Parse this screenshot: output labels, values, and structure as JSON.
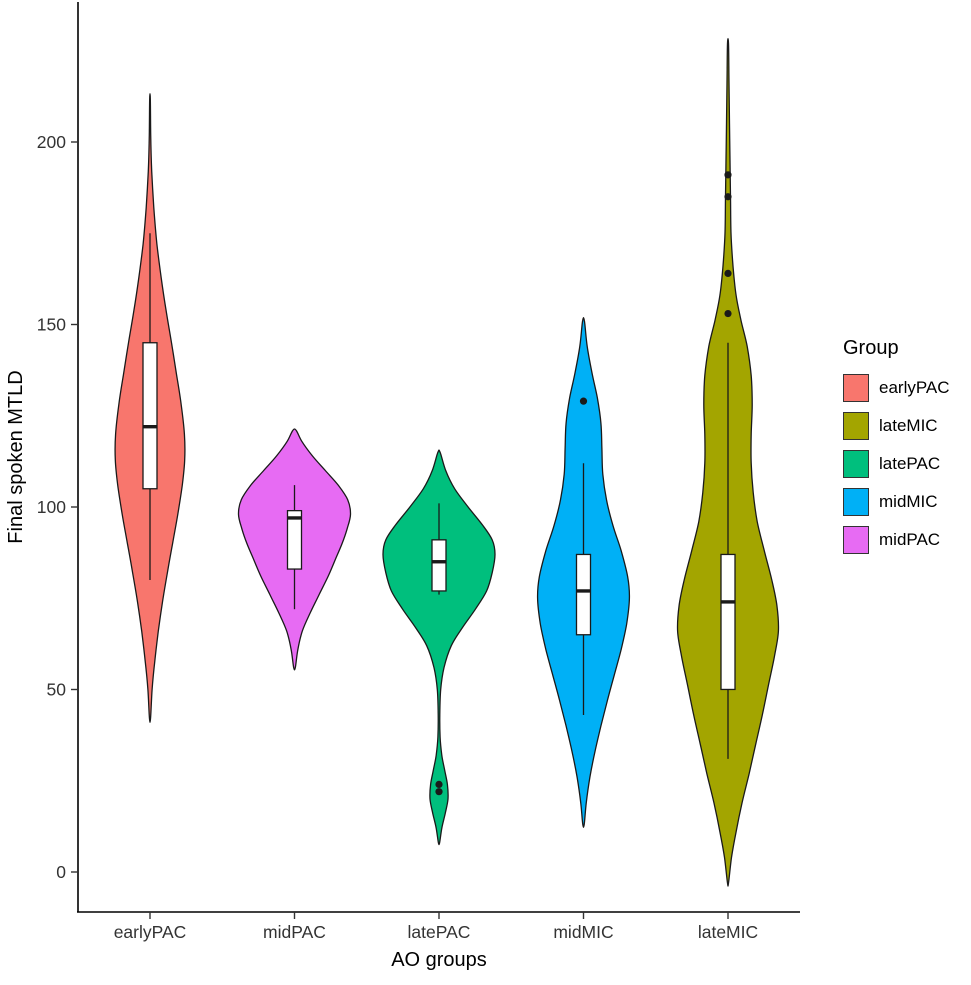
{
  "chart_data": {
    "type": "violin",
    "title": "",
    "xlabel": "AO groups",
    "ylabel": "Final spoken MTLD",
    "ylim": [
      -11,
      237
    ],
    "yticks": [
      0,
      50,
      100,
      150,
      200
    ],
    "categories": [
      "earlyPAC",
      "midPAC",
      "latePAC",
      "midMIC",
      "lateMIC"
    ],
    "grid": false,
    "legend_position": "right",
    "series": [
      {
        "name": "earlyPAC",
        "color": "#F8766D",
        "width_scale": 0.62,
        "box": {
          "q1": 105,
          "median": 122,
          "q3": 145,
          "whisker_low": 80,
          "whisker_high": 175
        },
        "outliers": [],
        "density": [
          [
            42,
            0.015
          ],
          [
            50,
            0.06
          ],
          [
            58,
            0.14
          ],
          [
            66,
            0.24
          ],
          [
            74,
            0.36
          ],
          [
            82,
            0.5
          ],
          [
            90,
            0.65
          ],
          [
            98,
            0.8
          ],
          [
            106,
            0.93
          ],
          [
            113,
            1.0
          ],
          [
            120,
            0.99
          ],
          [
            128,
            0.9
          ],
          [
            136,
            0.77
          ],
          [
            145,
            0.62
          ],
          [
            154,
            0.46
          ],
          [
            163,
            0.32
          ],
          [
            172,
            0.2
          ],
          [
            182,
            0.11
          ],
          [
            192,
            0.05
          ],
          [
            202,
            0.02
          ],
          [
            212,
            0.01
          ]
        ]
      },
      {
        "name": "midPAC",
        "color": "#E76BF3",
        "width_scale": 1.0,
        "box": {
          "q1": 83,
          "median": 97,
          "q3": 99,
          "whisker_low": 72,
          "whisker_high": 106
        },
        "outliers": [],
        "density": [
          [
            56,
            0.015
          ],
          [
            61,
            0.06
          ],
          [
            66,
            0.14
          ],
          [
            71,
            0.28
          ],
          [
            76,
            0.44
          ],
          [
            81,
            0.6
          ],
          [
            86,
            0.74
          ],
          [
            90,
            0.85
          ],
          [
            94,
            0.94
          ],
          [
            98,
            1.0
          ],
          [
            102,
            0.95
          ],
          [
            106,
            0.78
          ],
          [
            110,
            0.55
          ],
          [
            114,
            0.32
          ],
          [
            118,
            0.13
          ],
          [
            121,
            0.03
          ]
        ]
      },
      {
        "name": "latePAC",
        "color": "#00BF7D",
        "width_scale": 1.0,
        "box": {
          "q1": 77,
          "median": 85,
          "q3": 91,
          "whisker_low": 76,
          "whisker_high": 101
        },
        "outliers": [
          22,
          24
        ],
        "density": [
          [
            8,
            0.01
          ],
          [
            12,
            0.05
          ],
          [
            16,
            0.11
          ],
          [
            20,
            0.16
          ],
          [
            24,
            0.15
          ],
          [
            28,
            0.1
          ],
          [
            32,
            0.05
          ],
          [
            37,
            0.02
          ],
          [
            43,
            0.015
          ],
          [
            50,
            0.03
          ],
          [
            56,
            0.09
          ],
          [
            62,
            0.22
          ],
          [
            67,
            0.42
          ],
          [
            72,
            0.65
          ],
          [
            77,
            0.85
          ],
          [
            82,
            0.95
          ],
          [
            87,
            1.0
          ],
          [
            91,
            0.95
          ],
          [
            95,
            0.78
          ],
          [
            100,
            0.52
          ],
          [
            105,
            0.28
          ],
          [
            110,
            0.12
          ],
          [
            115,
            0.02
          ]
        ]
      },
      {
        "name": "midMIC",
        "color": "#00B0F6",
        "width_scale": 0.82,
        "box": {
          "q1": 65,
          "median": 77,
          "q3": 87,
          "whisker_low": 43,
          "whisker_high": 112
        },
        "outliers": [
          129
        ],
        "density": [
          [
            13,
            0.015
          ],
          [
            19,
            0.06
          ],
          [
            26,
            0.14
          ],
          [
            33,
            0.25
          ],
          [
            40,
            0.38
          ],
          [
            47,
            0.52
          ],
          [
            54,
            0.67
          ],
          [
            61,
            0.82
          ],
          [
            68,
            0.94
          ],
          [
            75,
            1.0
          ],
          [
            81,
            0.96
          ],
          [
            88,
            0.82
          ],
          [
            95,
            0.64
          ],
          [
            102,
            0.5
          ],
          [
            109,
            0.42
          ],
          [
            116,
            0.4
          ],
          [
            123,
            0.38
          ],
          [
            130,
            0.3
          ],
          [
            137,
            0.18
          ],
          [
            144,
            0.08
          ],
          [
            151,
            0.02
          ]
        ]
      },
      {
        "name": "lateMIC",
        "color": "#A3A500",
        "width_scale": 0.9,
        "box": {
          "q1": 50,
          "median": 74,
          "q3": 87,
          "whisker_low": 31,
          "whisker_high": 145
        },
        "outliers": [
          153,
          164,
          185,
          191
        ],
        "density": [
          [
            -3,
            0.01
          ],
          [
            4,
            0.07
          ],
          [
            11,
            0.16
          ],
          [
            19,
            0.28
          ],
          [
            27,
            0.42
          ],
          [
            35,
            0.55
          ],
          [
            43,
            0.68
          ],
          [
            51,
            0.8
          ],
          [
            59,
            0.92
          ],
          [
            66,
            1.0
          ],
          [
            73,
            0.97
          ],
          [
            80,
            0.87
          ],
          [
            88,
            0.72
          ],
          [
            96,
            0.58
          ],
          [
            104,
            0.5
          ],
          [
            112,
            0.46
          ],
          [
            120,
            0.46
          ],
          [
            128,
            0.48
          ],
          [
            136,
            0.46
          ],
          [
            144,
            0.38
          ],
          [
            151,
            0.26
          ],
          [
            158,
            0.16
          ],
          [
            166,
            0.1
          ],
          [
            175,
            0.06
          ],
          [
            185,
            0.05
          ],
          [
            195,
            0.04
          ],
          [
            205,
            0.03
          ],
          [
            216,
            0.02
          ],
          [
            227,
            0.01
          ]
        ]
      }
    ]
  },
  "legend": {
    "title": "Group",
    "items": [
      {
        "label": "earlyPAC",
        "color": "#F8766D"
      },
      {
        "label": "lateMIC",
        "color": "#A3A500"
      },
      {
        "label": "latePAC",
        "color": "#00BF7D"
      },
      {
        "label": "midMIC",
        "color": "#00B0F6"
      },
      {
        "label": "midPAC",
        "color": "#E76BF3"
      }
    ]
  },
  "colors": {
    "outline": "#1a1a1a",
    "axis": "#000000",
    "tick_text": "#333333",
    "box_fill": "#ffffff"
  }
}
